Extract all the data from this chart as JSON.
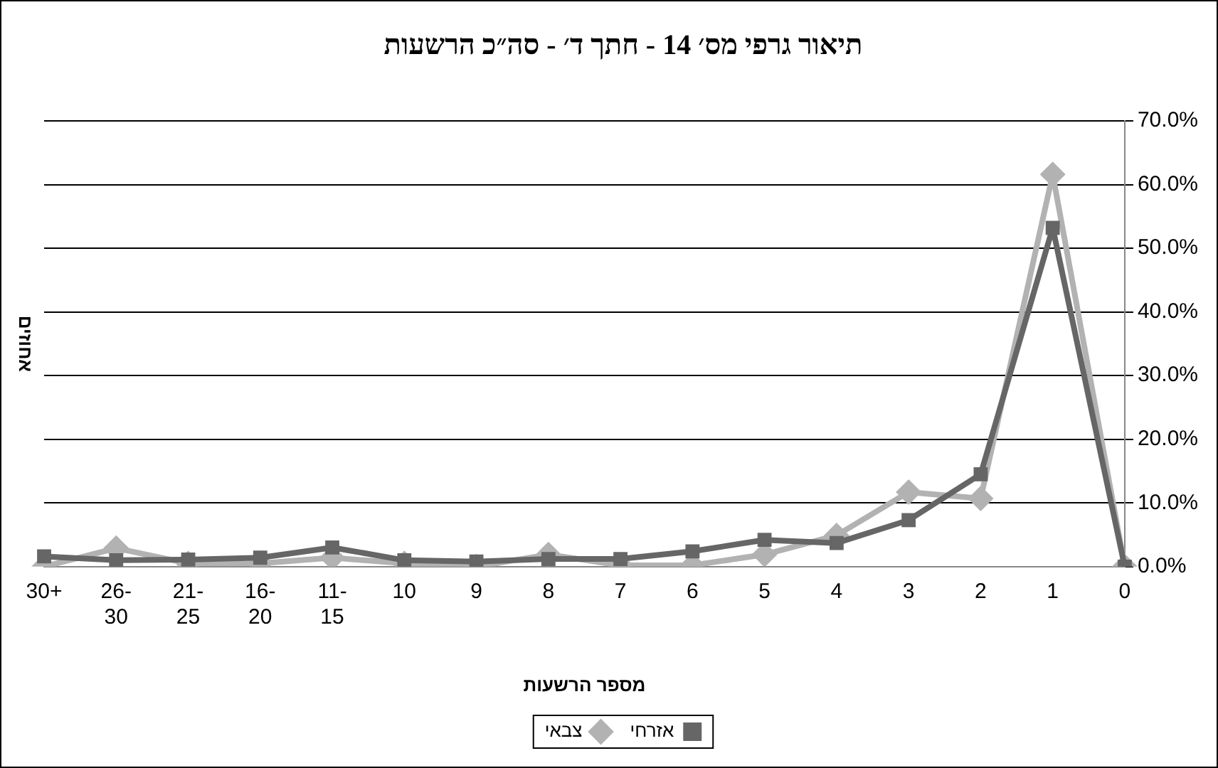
{
  "chart_data": {
    "type": "line",
    "title": "תיאור גרפי מס׳ 14 - חתך ד׳ - סה״כ הרשעות",
    "xlabel": "מספר הרשעות",
    "ylabel": "אחוזים",
    "categories": [
      "30+",
      "26-30",
      "21-25",
      "16-20",
      "11-15",
      "10",
      "9",
      "8",
      "7",
      "6",
      "5",
      "4",
      "3",
      "2",
      "1",
      "0"
    ],
    "series": [
      {
        "name": "אזרחי",
        "color": "#666666",
        "marker": "square",
        "values": [
          1.6,
          1.0,
          1.1,
          1.4,
          3.0,
          1.0,
          0.8,
          1.2,
          1.2,
          2.4,
          4.2,
          3.7,
          7.3,
          14.5,
          53.2,
          0
        ]
      },
      {
        "name": "צבאי",
        "color": "#b2b2b2",
        "marker": "diamond",
        "values": [
          0,
          2.9,
          0.5,
          0.5,
          1.4,
          0.5,
          0,
          1.9,
          0.2,
          0.2,
          1.9,
          4.9,
          11.7,
          10.7,
          61.6,
          0
        ]
      }
    ],
    "ylim": [
      0,
      70
    ],
    "yticks": [
      {
        "value": 0,
        "label": "0.0%"
      },
      {
        "value": 10,
        "label": "10.0%"
      },
      {
        "value": 20,
        "label": "20.0%"
      },
      {
        "value": 30,
        "label": "30.0%"
      },
      {
        "value": 40,
        "label": "40.0%"
      },
      {
        "value": 50,
        "label": "50.0%"
      },
      {
        "value": 60,
        "label": "60.0%"
      },
      {
        "value": 70,
        "label": "70.0%"
      }
    ],
    "grid": "y",
    "legend": "bottom"
  }
}
